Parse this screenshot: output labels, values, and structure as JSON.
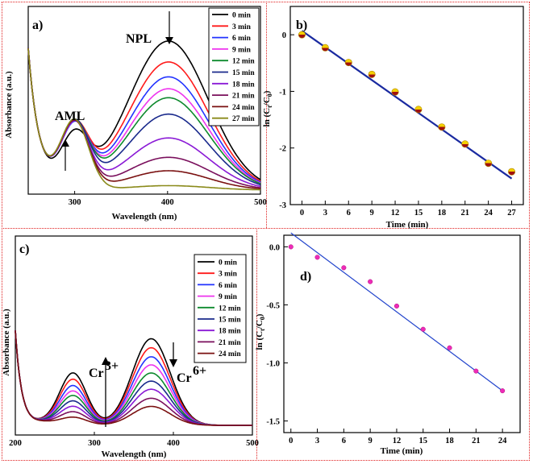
{
  "chart_data": [
    {
      "panel": "a)",
      "type": "line",
      "xlabel": "Wavelength (nm)",
      "ylabel": "Absorbance (a.u.)",
      "xlim": [
        250,
        500
      ],
      "xticks": [
        300,
        400,
        500
      ],
      "annotations": [
        "NPL",
        "AML"
      ],
      "series": [
        {
          "name": "0 min",
          "color": "#000000",
          "peak": 1.0,
          "p300": 0.33
        },
        {
          "name": "3 min",
          "color": "#ff1a1a",
          "peak": 0.86,
          "p300": 0.4
        },
        {
          "name": "6 min",
          "color": "#2233ff",
          "peak": 0.76,
          "p300": 0.4
        },
        {
          "name": "9 min",
          "color": "#ee33ee",
          "peak": 0.68,
          "p300": 0.41
        },
        {
          "name": "12 min",
          "color": "#0e8a2e",
          "peak": 0.62,
          "p300": 0.42
        },
        {
          "name": "15 min",
          "color": "#1a2a8c",
          "peak": 0.51,
          "p300": 0.43
        },
        {
          "name": "18 min",
          "color": "#8a1ad6",
          "peak": 0.35,
          "p300": 0.43
        },
        {
          "name": "21 min",
          "color": "#7a0f5c",
          "peak": 0.22,
          "p300": 0.44
        },
        {
          "name": "24 min",
          "color": "#7a1010",
          "peak": 0.13,
          "p300": 0.45
        },
        {
          "name": "27 min",
          "color": "#8a8a1a",
          "peak": 0.03,
          "p300": 0.46
        }
      ]
    },
    {
      "panel": "b)",
      "type": "scatter",
      "xlabel": "Time (min)",
      "ylabel": "ln (C_t/C_0)",
      "xlim": [
        -1.5,
        28.5
      ],
      "ylim": [
        -3,
        0.5
      ],
      "xticks": [
        0,
        3,
        6,
        9,
        12,
        15,
        18,
        21,
        24,
        27
      ],
      "yticks": [
        0,
        -1,
        -2,
        -3
      ],
      "x": [
        0,
        3,
        6,
        9,
        12,
        15,
        18,
        21,
        24,
        27
      ],
      "y": [
        0,
        -0.23,
        -0.49,
        -0.7,
        -1.01,
        -1.32,
        -1.63,
        -1.93,
        -2.27,
        -2.42
      ],
      "fit": {
        "x": [
          0,
          27
        ],
        "y": [
          0.07,
          -2.54
        ],
        "color": "#1a2aa0"
      }
    },
    {
      "panel": "c)",
      "type": "line",
      "xlabel": "Wavelength (nm)",
      "ylabel": "Absorbance (a.u.)",
      "xlim": [
        200,
        500
      ],
      "xticks": [
        200,
        300,
        400,
        500
      ],
      "annotations": [
        "Cr",
        "3+",
        "Cr",
        "6+"
      ],
      "series": [
        {
          "name": "0 min",
          "color": "#000000",
          "peak": 0.96,
          "p273": 0.58
        },
        {
          "name": "3 min",
          "color": "#ff1a1a",
          "peak": 0.86,
          "p273": 0.51
        },
        {
          "name": "6 min",
          "color": "#2233ff",
          "peak": 0.76,
          "p273": 0.44
        },
        {
          "name": "9 min",
          "color": "#ee33ee",
          "peak": 0.67,
          "p273": 0.38
        },
        {
          "name": "12 min",
          "color": "#0e8a2e",
          "peak": 0.58,
          "p273": 0.33
        },
        {
          "name": "15 min",
          "color": "#1a2a8c",
          "peak": 0.49,
          "p273": 0.27
        },
        {
          "name": "18 min",
          "color": "#8a1ad6",
          "peak": 0.4,
          "p273": 0.21
        },
        {
          "name": "21 min",
          "color": "#7a0f5c",
          "peak": 0.3,
          "p273": 0.15
        },
        {
          "name": "24 min",
          "color": "#7a1010",
          "peak": 0.21,
          "p273": 0.09
        }
      ]
    },
    {
      "panel": "d)",
      "type": "scatter",
      "xlabel": "Time (min)",
      "ylabel": "ln (C_t/C_0)",
      "xlim": [
        -0.8,
        26
      ],
      "ylim": [
        -1.6,
        0.1
      ],
      "xticks": [
        0,
        3,
        6,
        9,
        12,
        15,
        18,
        21,
        24
      ],
      "yticks": [
        0.0,
        -0.5,
        -1.0,
        -1.5
      ],
      "ytick_labels": [
        "0.0",
        "-0.5",
        "-1.0",
        "-1.5"
      ],
      "x": [
        0,
        3,
        6,
        9,
        12,
        15,
        18,
        21,
        24
      ],
      "y": [
        0.0,
        -0.09,
        -0.18,
        -0.3,
        -0.51,
        -0.71,
        -0.87,
        -1.07,
        -1.24
      ],
      "fit": {
        "x": [
          0,
          24
        ],
        "y": [
          0.12,
          -1.24
        ],
        "color": "#2244cc"
      }
    }
  ]
}
